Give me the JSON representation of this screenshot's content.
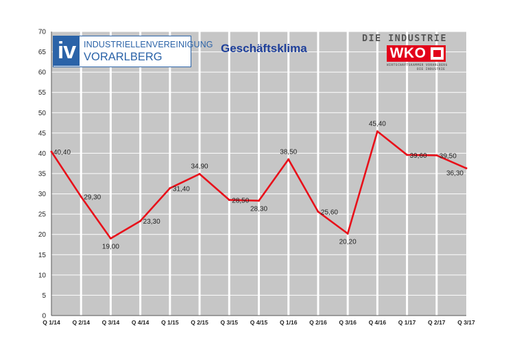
{
  "logos": {
    "iv": {
      "mark": "iv",
      "line1": "INDUSTRIELLENVEREINIGUNG",
      "line2": "VORARLBERG",
      "color": "#2b63a8"
    },
    "wko": {
      "top": "DIE INDUSTRIE",
      "mark": "WKO",
      "sub1": "WIRTSCHAFTSKAMMER VORARLBERG",
      "sub2": "DIE INDUSTRIE",
      "color": "#e2001a"
    }
  },
  "chart_data": {
    "type": "line",
    "title": "Geschäftsklima",
    "xlabel": "",
    "ylabel": "",
    "categories": [
      "Q 1/14",
      "Q 2/14",
      "Q 3/14",
      "Q 4/14",
      "Q 1/15",
      "Q 2/15",
      "Q 3/15",
      "Q 4/15",
      "Q 1/16",
      "Q 2/16",
      "Q 3/16",
      "Q 4/16",
      "Q 1/17",
      "Q 2/17",
      "Q 3/17"
    ],
    "series": [
      {
        "values": [
          40.4,
          29.3,
          19.0,
          23.3,
          31.4,
          34.9,
          28.5,
          28.3,
          38.5,
          25.6,
          20.2,
          45.4,
          39.6,
          39.5,
          36.3
        ],
        "labels": [
          "40,40",
          "29,30",
          "19,00",
          "23,30",
          "31,40",
          "34,90",
          "28,50",
          "28,30",
          "38,50",
          "25,60",
          "20,20",
          "45,40",
          "39,60",
          "39,50",
          "36,30"
        ],
        "color": "#e8101a"
      }
    ],
    "ylim": [
      0,
      70
    ],
    "yticks": [
      0,
      5,
      10,
      15,
      20,
      25,
      30,
      35,
      40,
      45,
      50,
      55,
      60,
      65,
      70
    ],
    "grid": true,
    "legend": "none",
    "colors": {
      "plot_background": "#c6c6c6",
      "gridline": "#ffffff",
      "line": "#e8101a",
      "title": "#1e3f9a"
    }
  }
}
